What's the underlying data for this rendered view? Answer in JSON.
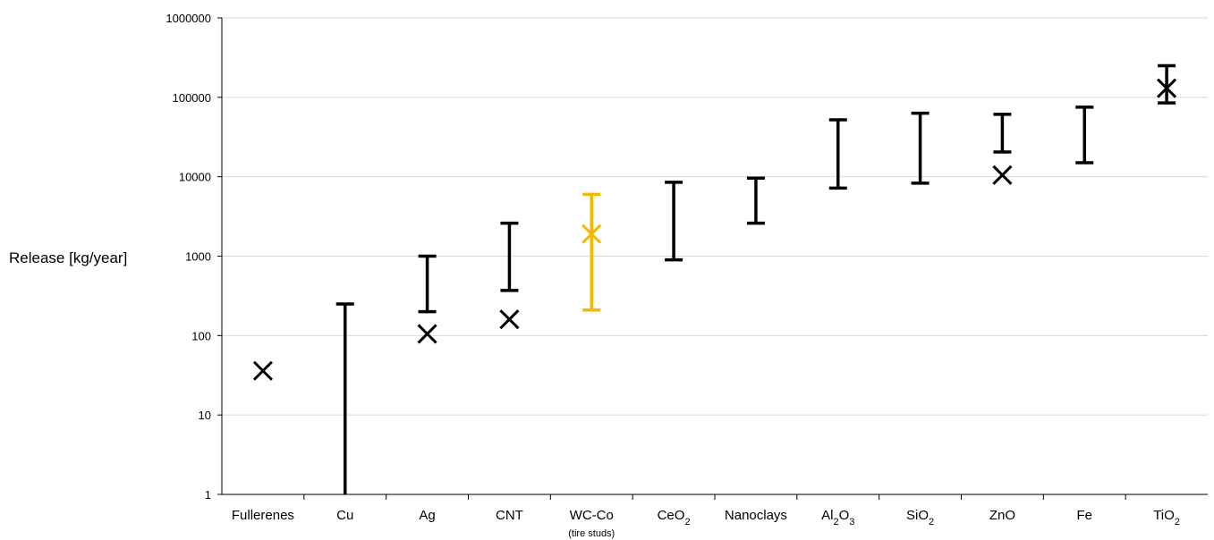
{
  "chart_data": {
    "type": "scatter",
    "title": "",
    "xlabel": "",
    "ylabel": "Release [kg/year]",
    "yscale": "log",
    "ylim": [
      1,
      1000000
    ],
    "yticks": [
      "1",
      "10",
      "100",
      "1000",
      "10000",
      "100000",
      "1000000"
    ],
    "grid": "horizontal",
    "legend": "none",
    "colors": {
      "default": "#000000",
      "highlight": "#f5b800",
      "grid": "#d9d9d9"
    },
    "categories": [
      {
        "base": "Fullerenes",
        "sub": "",
        "note": "",
        "point": 36,
        "range": null,
        "highlight": false
      },
      {
        "base": "Cu",
        "sub": "",
        "note": "",
        "point": null,
        "range": [
          1,
          250
        ],
        "highlight": false
      },
      {
        "base": "Ag",
        "sub": "",
        "note": "",
        "point": 105,
        "range": [
          200,
          1000
        ],
        "highlight": false
      },
      {
        "base": "CNT",
        "sub": "",
        "note": "",
        "point": 160,
        "range": [
          370,
          2600
        ],
        "highlight": false
      },
      {
        "base": "WC-Co",
        "sub": "",
        "note": "(tire studs)",
        "point": 1900,
        "range": [
          210,
          6000
        ],
        "highlight": true
      },
      {
        "base": "CeO",
        "sub": "2",
        "note": "",
        "point": null,
        "range": [
          900,
          8500
        ],
        "highlight": false
      },
      {
        "base": "Nanoclays",
        "sub": "",
        "note": "",
        "point": null,
        "range": [
          2600,
          9600
        ],
        "highlight": false
      },
      {
        "base": "Al",
        "sub": "2",
        "base2": "O",
        "sub2": "3",
        "note": "",
        "point": null,
        "range": [
          7200,
          52000
        ],
        "highlight": false
      },
      {
        "base": "SiO",
        "sub": "2",
        "note": "",
        "point": null,
        "range": [
          8300,
          63000
        ],
        "highlight": false
      },
      {
        "base": "ZnO",
        "sub": "",
        "note": "",
        "point": 10500,
        "range": [
          20500,
          61000
        ],
        "highlight": false
      },
      {
        "base": "Fe",
        "sub": "",
        "note": "",
        "point": null,
        "range": [
          15000,
          75000
        ],
        "highlight": false
      },
      {
        "base": "TiO",
        "sub": "2",
        "note": "",
        "point": 130000,
        "range": [
          85000,
          250000
        ],
        "highlight": false
      }
    ]
  }
}
